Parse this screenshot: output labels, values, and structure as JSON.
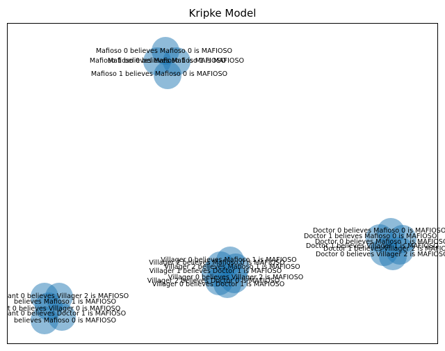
{
  "title": "Kripke Model",
  "colors": {
    "node": "#1f77b4",
    "frame": "#000000",
    "background": "#ffffff"
  },
  "clusters": [
    {
      "name": "mafioso",
      "labels": [
        "Mafioso 0 believes Mafioso 0 is MAFIOSO",
        "Mafioso 1 believes Mafioso 1 is MAFIOSO",
        "Mafioso 0 believes Mafioso 1 is MAFIOSO",
        "Mafioso 1 believes Mafioso 0 is MAFIOSO"
      ]
    },
    {
      "name": "doctor",
      "labels": [
        "Doctor 0 believes Mafioso 0 is MAFIOSO",
        "Doctor 1 believes Mafioso 0 is MAFIOSO",
        "Doctor 0 believes Mafioso 1 is MAFIOSO",
        "Doctor 1 believes Villager 1 is MAFIOSO",
        "Doctor 1 believes Villager 2 is MAFIOSO",
        "Doctor 0 believes Villager 2 is MAFIOSO"
      ]
    },
    {
      "name": "villager",
      "labels": [
        "Villager 0 believes Mafioso 1 is MAFIOSO",
        "Villager 2 believes Mafioso 0 is MAFIOSO",
        "Villager 2 believes Mafioso 1 is MAFIOSO",
        "Villager 1 believes Doctor 1 is MAFIOSO",
        "Villager 0 believes Villager 2 is MAFIOSO",
        "Villager 2 believes Doctor 0 is MAFIOSO",
        "Villager 0 believes Doctor 1 is MAFIOSO"
      ]
    },
    {
      "name": "fourth",
      "labels": [
        "ant 0 believes Villager 2 is MAFIOSO",
        "believes Mafioso 1 is MAFIOSO",
        "t 0 believes Villager 0 is MAFIOSO",
        "ant 0 believes Doctor 1 is MAFIOSO",
        "believes Mafioso 0 is MAFIOSO"
      ]
    }
  ]
}
